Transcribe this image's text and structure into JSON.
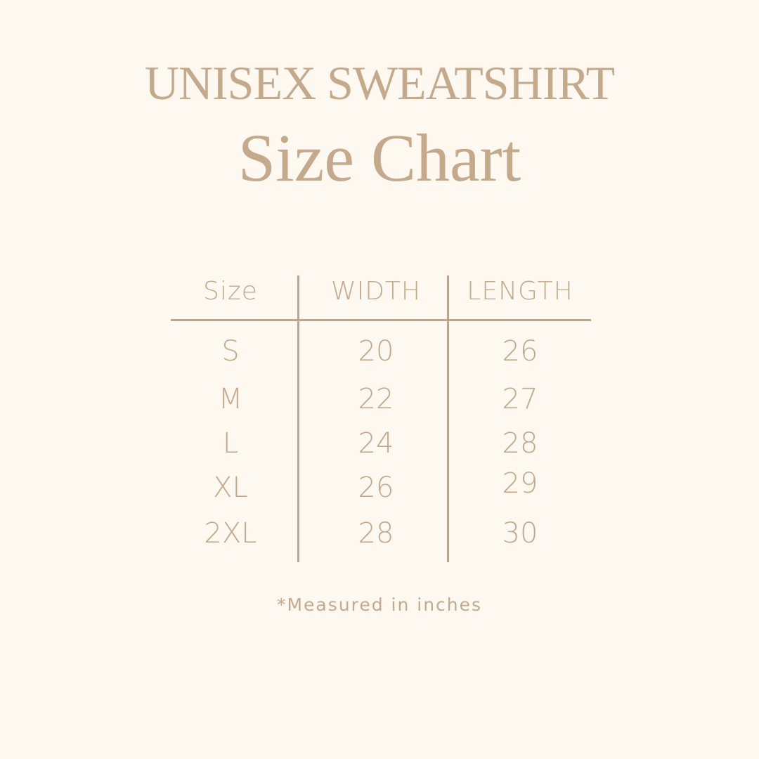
{
  "title": {
    "line1": "UNISEX SWEATSHIRT",
    "line2": "Size Chart"
  },
  "table": {
    "headers": [
      "Size",
      "WIDTH",
      "LENGTH"
    ],
    "rows": [
      {
        "size": "S",
        "width": "20",
        "length": "26"
      },
      {
        "size": "M",
        "width": "22",
        "length": "27"
      },
      {
        "size": "L",
        "width": "24",
        "length": "28"
      },
      {
        "size": "XL",
        "width": "26",
        "length": "29"
      },
      {
        "size": "2XL",
        "width": "28",
        "length": "30"
      }
    ]
  },
  "footnote": "*Measured in inches",
  "colors": {
    "background": "#fdf8f0",
    "text": "#c4a98a",
    "lines": "#b8a690"
  }
}
